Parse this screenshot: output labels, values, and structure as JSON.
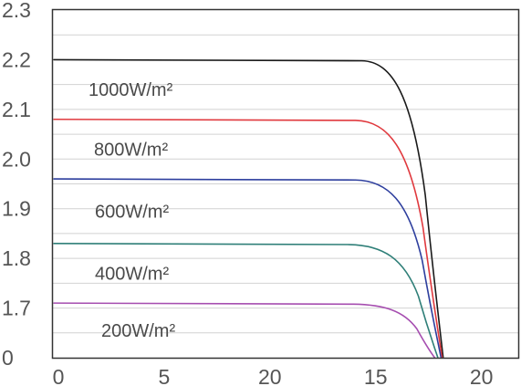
{
  "chart_data": {
    "type": "line",
    "title": "",
    "xlabel": "",
    "ylabel": "",
    "y_ticks": [
      "0",
      "1.7",
      "1.8",
      "1.9",
      "2.0",
      "2.1",
      "2.2",
      "2.3"
    ],
    "x_ticks": [
      "0",
      "5",
      "20",
      "15",
      "20"
    ],
    "grid": {
      "horizontal": true,
      "vertical": false
    },
    "legend": "inline labels above each curve",
    "series": [
      {
        "name": "1000W/m²",
        "color": "#1a1a1a",
        "plateau": 2.2,
        "knee_x": 14.6,
        "zero_x": 18.45
      },
      {
        "name": "800W/m²",
        "color": "#e0393e",
        "plateau": 2.08,
        "knee_x": 14.3,
        "zero_x": 18.4
      },
      {
        "name": "600W/m²",
        "color": "#2e3f9e",
        "plateau": 1.96,
        "knee_x": 14.3,
        "zero_x": 18.35
      },
      {
        "name": "400W/m²",
        "color": "#2f7f78",
        "plateau": 1.83,
        "knee_x": 14.0,
        "zero_x": 18.2
      },
      {
        "name": "200W/m²",
        "color": "#a64eb0",
        "plateau": 1.71,
        "knee_x": 14.2,
        "zero_x": 18.05
      }
    ]
  }
}
